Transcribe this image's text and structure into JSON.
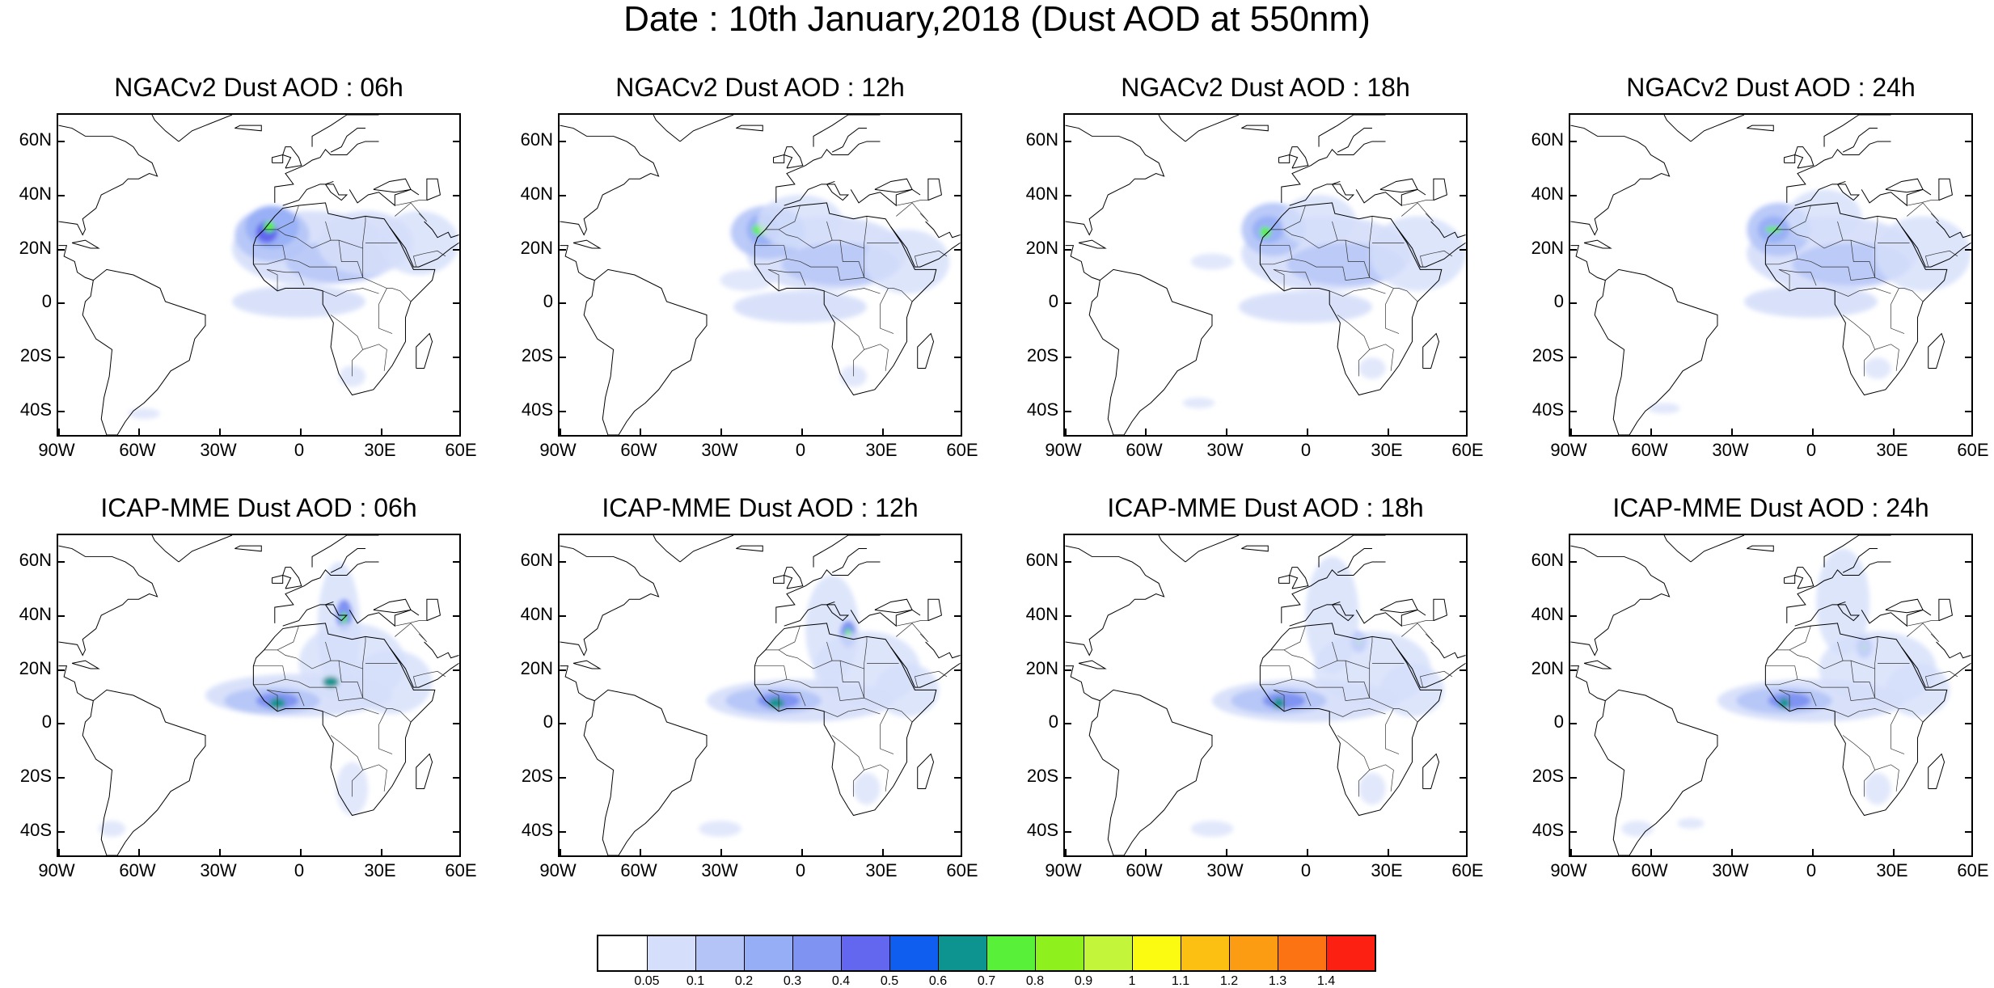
{
  "title": "Date : 10th January,2018 (Dust AOD at 550nm)",
  "lat_labels": [
    "60N",
    "40N",
    "20N",
    "0",
    "20S",
    "40S"
  ],
  "lon_labels": [
    "90W",
    "60W",
    "30W",
    "0",
    "30E",
    "60E"
  ],
  "panels": [
    {
      "title": "NGACv2 Dust AOD : 06h",
      "hour": "06h",
      "model": "NGACv2"
    },
    {
      "title": "NGACv2 Dust AOD : 12h",
      "hour": "12h",
      "model": "NGACv2"
    },
    {
      "title": "NGACv2 Dust AOD : 18h",
      "hour": "18h",
      "model": "NGACv2"
    },
    {
      "title": "NGACv2 Dust AOD : 24h",
      "hour": "24h",
      "model": "NGACv2"
    },
    {
      "title": "ICAP-MME Dust AOD : 06h",
      "hour": "06h",
      "model": "ICAP-MME"
    },
    {
      "title": "ICAP-MME Dust AOD : 12h",
      "hour": "12h",
      "model": "ICAP-MME"
    },
    {
      "title": "ICAP-MME Dust AOD : 18h",
      "hour": "18h",
      "model": "ICAP-MME"
    },
    {
      "title": "ICAP-MME Dust AOD : 24h",
      "hour": "24h",
      "model": "ICAP-MME"
    }
  ],
  "colorbar": {
    "labels": [
      "0.05",
      "0.1",
      "0.2",
      "0.3",
      "0.4",
      "0.5",
      "0.6",
      "0.7",
      "0.8",
      "0.9",
      "1",
      "1.1",
      "1.2",
      "1.3",
      "1.4"
    ],
    "colors": [
      "#ffffff",
      "#d5defa",
      "#b4c4f7",
      "#96aef6",
      "#7f93f2",
      "#6366ee",
      "#0f5ef0",
      "#0d9490",
      "#59f03a",
      "#8ef01c",
      "#c3f53a",
      "#fbfb12",
      "#fbc012",
      "#fb9c12",
      "#fb7312",
      "#fb2012"
    ]
  },
  "map": {
    "land_outline_color": "#000000",
    "ocean_color": "#ffffff"
  }
}
